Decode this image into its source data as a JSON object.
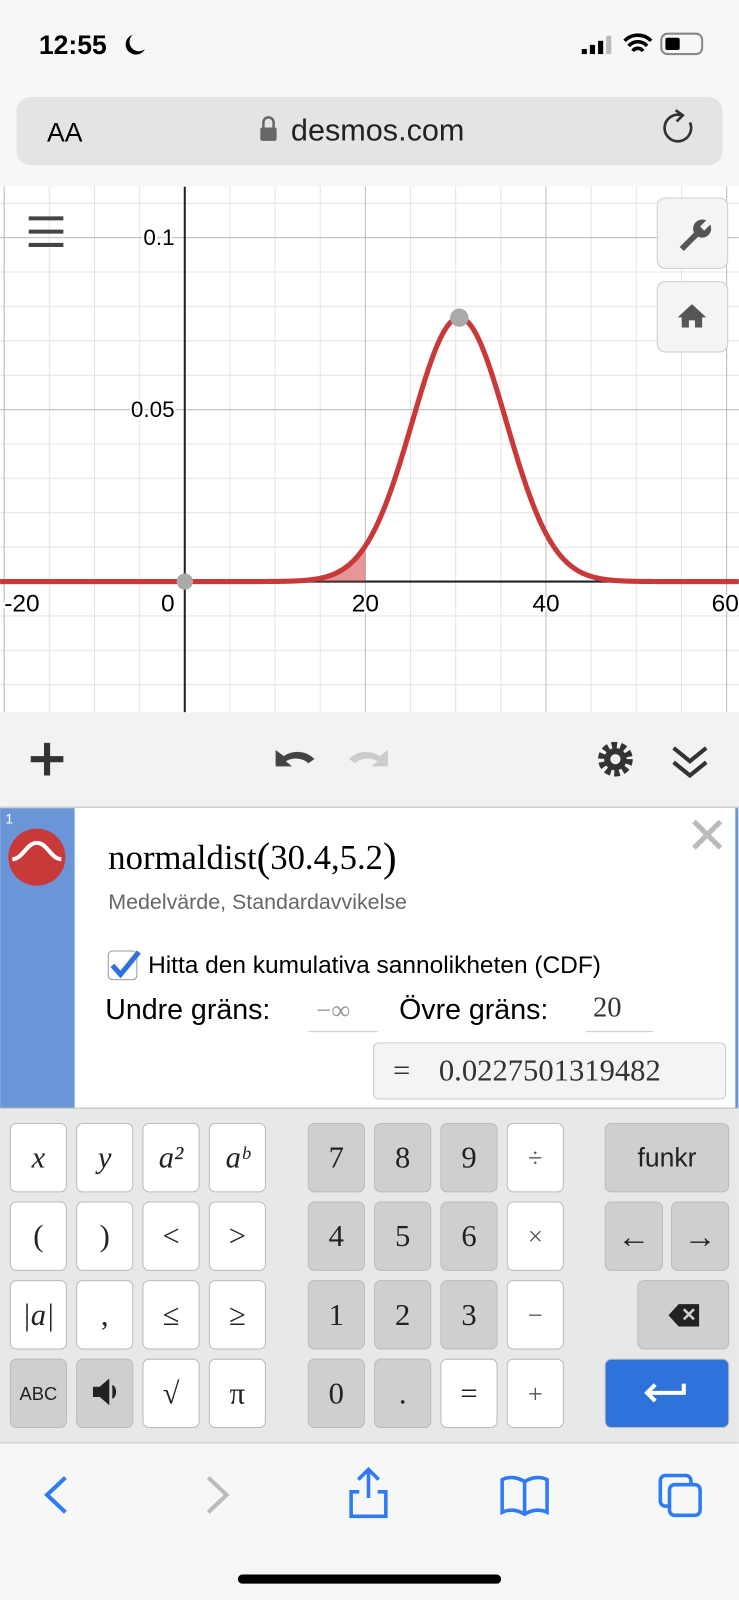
{
  "status_bar": {
    "time": "12:55"
  },
  "address_bar": {
    "text_size": "AA",
    "url": "desmos.com"
  },
  "graph": {
    "xticks": [
      -20,
      0,
      20,
      40,
      60
    ],
    "yticks": [
      0.05,
      0.1
    ],
    "xlim": [
      -20.45,
      61.36
    ],
    "ylim": [
      -0.038,
      0.1148
    ]
  },
  "expression": {
    "index": "1",
    "function": "normaldist",
    "mean": 30.4,
    "sd": 5.2,
    "hint": "Medelvärde, Standardavvikelse",
    "cdf_label": "Hitta den kumulativa sannolikheten (CDF)",
    "lower_label": "Undre gräns:",
    "lower_limit": "−∞",
    "upper_label": "Övre gräns:",
    "upper_limit": 20,
    "result": 0.0227501319482
  },
  "keypad": {
    "functions": [
      [
        "x",
        "y",
        "a²",
        "aᵇ"
      ],
      [
        "(",
        ")",
        "<",
        ">"
      ],
      [
        "|a|",
        ",",
        "≤",
        "≥"
      ],
      [
        "ABC",
        "√",
        "π"
      ]
    ],
    "numbers": [
      [
        "7",
        "8",
        "9",
        "÷"
      ],
      [
        "4",
        "5",
        "6",
        "×"
      ],
      [
        "1",
        "2",
        "3",
        "−"
      ],
      [
        "0",
        ".",
        "=",
        "+"
      ]
    ],
    "right": [
      "funkr",
      "←",
      "→"
    ]
  }
}
